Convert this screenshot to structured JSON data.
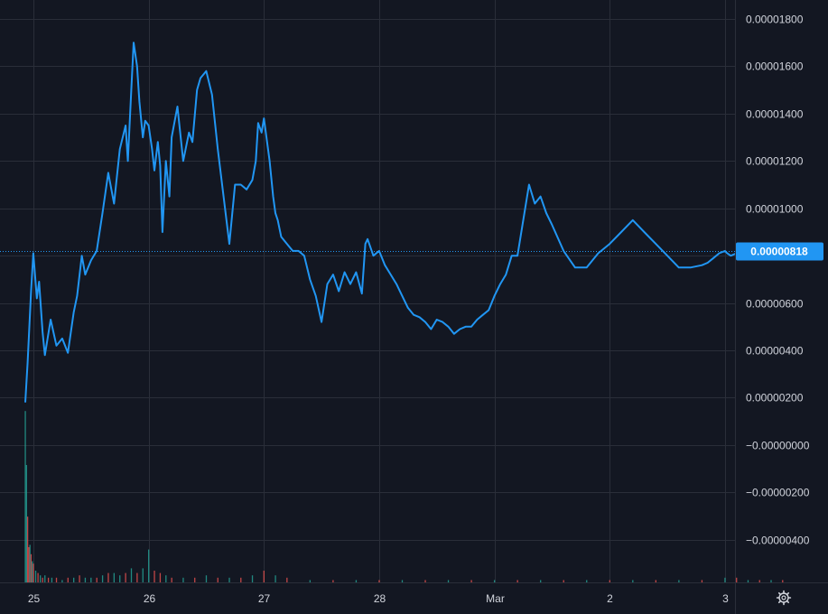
{
  "colors": {
    "background": "#131722",
    "grid": "#2a2e39",
    "axis_text": "#d1d4dc",
    "price_line": "#2196f3",
    "last_price_bg": "#2196f3",
    "last_price_text": "#ffffff",
    "volume_up": "#26a69a",
    "volume_down": "#ef5350"
  },
  "axis": {
    "settings_icon": "gear-icon"
  },
  "chart_data": {
    "type": "line",
    "title": "",
    "xlabel": "",
    "ylabel": "",
    "grid": true,
    "x_ticks": [
      "25",
      "26",
      "27",
      "28",
      "Mar",
      "2",
      "3"
    ],
    "y_ticks": [
      "0.00001800",
      "0.00001600",
      "0.00001400",
      "0.00001200",
      "0.00001000",
      "0.00000800",
      "0.00000600",
      "0.00000400",
      "0.00000200",
      "−0.00000000",
      "−0.00000200",
      "−0.00000400"
    ],
    "y_tick_values": [
      1.8e-05,
      1.6e-05,
      1.4e-05,
      1.2e-05,
      1e-05,
      8e-06,
      6e-06,
      4e-06,
      2e-06,
      0,
      -2e-06,
      -4e-06
    ],
    "ylim": [
      -5.8e-06,
      1.88e-05
    ],
    "xlim": [
      24.93,
      31.98
    ],
    "last_price": {
      "value": 8.18e-06,
      "label": "0.00000818"
    },
    "series": [
      {
        "x": [
          24.93,
          24.95,
          24.98,
          25.0,
          25.03,
          25.05,
          25.08,
          25.1,
          25.15,
          25.2,
          25.25,
          25.3,
          25.35,
          25.38,
          25.42,
          25.45,
          25.5,
          25.55,
          25.6,
          25.65,
          25.7,
          25.75,
          25.8,
          25.82,
          25.85,
          25.87,
          25.9,
          25.92,
          25.95,
          25.97,
          26.0,
          26.03,
          26.05,
          26.08,
          26.1,
          26.12,
          26.15,
          26.18,
          26.2,
          26.25,
          26.3,
          26.35,
          26.38,
          26.42,
          26.45,
          26.5,
          26.55,
          26.6,
          26.65,
          26.7,
          26.75,
          26.8,
          26.85,
          26.9,
          26.93,
          26.95,
          26.98,
          27.0,
          27.05,
          27.08,
          27.1,
          27.12,
          27.15,
          27.2,
          27.25,
          27.3,
          27.35,
          27.4,
          27.45,
          27.5,
          27.55,
          27.6,
          27.65,
          27.7,
          27.75,
          27.8,
          27.85,
          27.88,
          27.9,
          27.95,
          28.0,
          28.05,
          28.1,
          28.15,
          28.2,
          28.25,
          28.3,
          28.35,
          28.4,
          28.45,
          28.5,
          28.55,
          28.6,
          28.65,
          28.7,
          28.75,
          28.8,
          28.85,
          28.9,
          28.95,
          29.0,
          29.05,
          29.1,
          29.15,
          29.2,
          29.25,
          29.3,
          29.35,
          29.4,
          29.45,
          29.5,
          29.6,
          29.7,
          29.8,
          29.9,
          30.0,
          30.1,
          30.2,
          30.3,
          30.4,
          30.5,
          30.6,
          30.7,
          30.8,
          30.85,
          30.9,
          30.95,
          31.0,
          31.02,
          31.05,
          31.1,
          31.15,
          31.2,
          31.25,
          31.3,
          31.33,
          31.37,
          31.4,
          31.45,
          31.5,
          31.53
        ],
        "y": [
          1.8e-06,
          3.5e-06,
          6.5e-06,
          8.1e-06,
          6.2e-06,
          6.9e-06,
          4.8e-06,
          3.8e-06,
          5.3e-06,
          4.2e-06,
          4.5e-06,
          3.9e-06,
          5.6e-06,
          6.3e-06,
          8e-06,
          7.2e-06,
          7.8e-06,
          8.2e-06,
          9.8e-06,
          1.15e-05,
          1.02e-05,
          1.25e-05,
          1.35e-05,
          1.2e-05,
          1.5e-05,
          1.7e-05,
          1.6e-05,
          1.45e-05,
          1.3e-05,
          1.37e-05,
          1.35e-05,
          1.25e-05,
          1.16e-05,
          1.28e-05,
          1.18e-05,
          9e-06,
          1.2e-05,
          1.05e-05,
          1.3e-05,
          1.43e-05,
          1.2e-05,
          1.32e-05,
          1.28e-05,
          1.5e-05,
          1.55e-05,
          1.58e-05,
          1.48e-05,
          1.25e-05,
          1.05e-05,
          8.5e-06,
          1.1e-05,
          1.1e-05,
          1.08e-05,
          1.12e-05,
          1.2e-05,
          1.36e-05,
          1.32e-05,
          1.38e-05,
          1.2e-05,
          1.05e-05,
          9.8e-06,
          9.5e-06,
          8.8e-06,
          8.5e-06,
          8.2e-06,
          8.2e-06,
          8e-06,
          7e-06,
          6.3e-06,
          5.2e-06,
          6.8e-06,
          7.2e-06,
          6.5e-06,
          7.3e-06,
          6.8e-06,
          7.3e-06,
          6.4e-06,
          8.5e-06,
          8.7e-06,
          8e-06,
          8.2e-06,
          7.6e-06,
          7.2e-06,
          6.8e-06,
          6.3e-06,
          5.8e-06,
          5.5e-06,
          5.4e-06,
          5.2e-06,
          4.9e-06,
          5.3e-06,
          5.2e-06,
          5e-06,
          4.7e-06,
          4.9e-06,
          5e-06,
          5e-06,
          5.3e-06,
          5.5e-06,
          5.7e-06,
          6.3e-06,
          6.8e-06,
          7.2e-06,
          8e-06,
          8e-06,
          9.5e-06,
          1.1e-05,
          1.02e-05,
          1.05e-05,
          9.8e-06,
          9.3e-06,
          8.2e-06,
          7.5e-06,
          7.5e-06,
          8.1e-06,
          8.5e-06,
          9e-06,
          9.5e-06,
          9e-06,
          8.5e-06,
          8e-06,
          7.5e-06,
          7.5e-06,
          7.6e-06,
          7.7e-06,
          7.9e-06,
          8.1e-06,
          8.2e-06,
          8.1e-06,
          8e-06,
          8.1e-06,
          8.1e-06,
          8.2e-06,
          8.2e-06,
          8.1e-06,
          8.2e-06,
          8.2e-06,
          8.2e-06,
          8.2e-06,
          8.2e-06,
          8.18e-06
        ]
      }
    ],
    "volume": {
      "x": [
        24.93,
        24.94,
        24.95,
        24.96,
        24.97,
        24.98,
        24.99,
        25.0,
        25.02,
        25.04,
        25.06,
        25.08,
        25.1,
        25.13,
        25.16,
        25.2,
        25.25,
        25.3,
        25.35,
        25.4,
        25.45,
        25.5,
        25.55,
        25.6,
        25.65,
        25.7,
        25.75,
        25.8,
        25.85,
        25.9,
        25.95,
        26.0,
        26.05,
        26.1,
        26.15,
        26.2,
        26.3,
        26.4,
        26.5,
        26.6,
        26.7,
        26.8,
        26.9,
        27.0,
        27.1,
        27.2,
        27.4,
        27.6,
        27.8,
        28.0,
        28.2,
        28.4,
        28.6,
        28.8,
        29.0,
        29.2,
        29.4,
        29.6,
        29.8,
        30.0,
        30.2,
        30.4,
        30.6,
        30.8,
        31.0,
        31.1,
        31.2,
        31.3,
        31.4,
        31.5
      ],
      "values": [
        7.3e-06,
        5e-06,
        2.8e-06,
        1.5e-06,
        1.6e-06,
        1.2e-06,
        9e-07,
        8e-07,
        5e-07,
        4e-07,
        3e-07,
        2e-07,
        3e-07,
        2e-07,
        2e-07,
        2e-07,
        1e-07,
        2e-07,
        2e-07,
        3e-07,
        2e-07,
        2e-07,
        2e-07,
        3e-07,
        4e-07,
        4e-07,
        3e-07,
        4e-07,
        6e-07,
        4e-07,
        6e-07,
        1.4e-06,
        5e-07,
        4e-07,
        3e-07,
        2e-07,
        2e-07,
        2e-07,
        3e-07,
        2e-07,
        2e-07,
        2e-07,
        3e-07,
        5e-07,
        3e-07,
        2e-07,
        1e-07,
        1e-07,
        1e-07,
        1e-07,
        1e-07,
        1e-07,
        1e-07,
        1e-07,
        1e-07,
        1e-07,
        1e-07,
        1e-07,
        1e-07,
        1e-07,
        1e-07,
        1e-07,
        1e-07,
        1e-07,
        2e-07,
        2e-07,
        1e-07,
        1e-07,
        1e-07,
        1e-07
      ],
      "direction": [
        "up",
        "up",
        "down",
        "down",
        "up",
        "down",
        "up",
        "down",
        "up",
        "down",
        "up",
        "down",
        "up",
        "down",
        "up",
        "down",
        "up",
        "down",
        "up",
        "down",
        "up",
        "up",
        "down",
        "up",
        "down",
        "up",
        "up",
        "down",
        "up",
        "down",
        "up",
        "up",
        "down",
        "down",
        "up",
        "down",
        "up",
        "down",
        "up",
        "down",
        "up",
        "down",
        "up",
        "down",
        "up",
        "down",
        "up",
        "down",
        "up",
        "down",
        "up",
        "down",
        "up",
        "down",
        "up",
        "down",
        "up",
        "down",
        "up",
        "down",
        "up",
        "down",
        "up",
        "down",
        "up",
        "down",
        "up",
        "down",
        "up",
        "down"
      ]
    }
  }
}
